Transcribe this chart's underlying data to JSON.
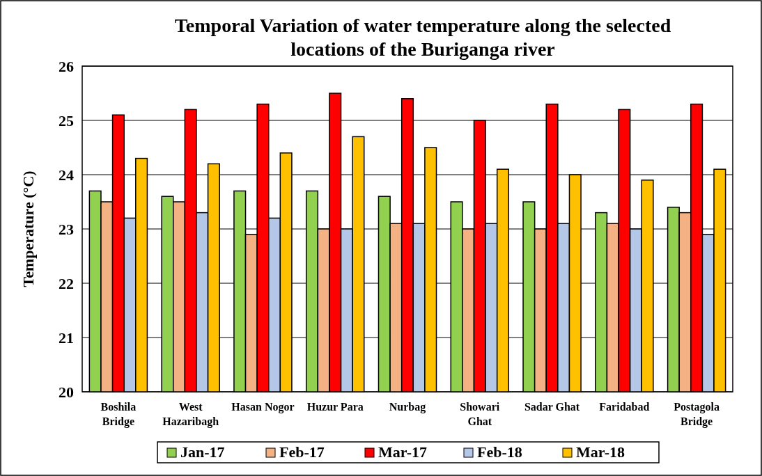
{
  "chart_data": {
    "type": "bar",
    "title": "Temporal Variation of water temperature along the selected locations of the Buriganga river",
    "ylabel": "Temperature (°C)",
    "categories": [
      "Boshila Bridge",
      "West Hazaribagh",
      "Hasan Nogor",
      "Huzur Para",
      "Nurbag",
      "Showari Ghat",
      "Sadar Ghat",
      "Faridabad",
      "Postagola Bridge"
    ],
    "series": [
      {
        "name": "Jan-17",
        "color": "#92d050",
        "values": [
          23.7,
          23.6,
          23.7,
          23.7,
          23.6,
          23.5,
          23.5,
          23.3,
          23.4
        ]
      },
      {
        "name": "Feb-17",
        "color": "#f4b183",
        "values": [
          23.5,
          23.5,
          22.9,
          23.0,
          23.1,
          23.0,
          23.0,
          23.1,
          23.3
        ]
      },
      {
        "name": "Mar-17",
        "color": "#ff0000",
        "values": [
          25.1,
          25.2,
          25.3,
          25.5,
          25.4,
          25.0,
          25.3,
          25.2,
          25.3
        ]
      },
      {
        "name": "Feb-18",
        "color": "#b4c7e7",
        "values": [
          23.2,
          23.3,
          23.2,
          23.0,
          23.1,
          23.1,
          23.1,
          23.0,
          22.9
        ]
      },
      {
        "name": "Mar-18",
        "color": "#ffc000",
        "values": [
          24.3,
          24.2,
          24.4,
          24.7,
          24.5,
          24.1,
          24.0,
          23.9,
          24.1
        ]
      }
    ],
    "ylim": [
      20,
      26
    ],
    "yticks": [
      20,
      21,
      22,
      23,
      24,
      25,
      26
    ],
    "grid": "y",
    "legend": "bottom"
  }
}
